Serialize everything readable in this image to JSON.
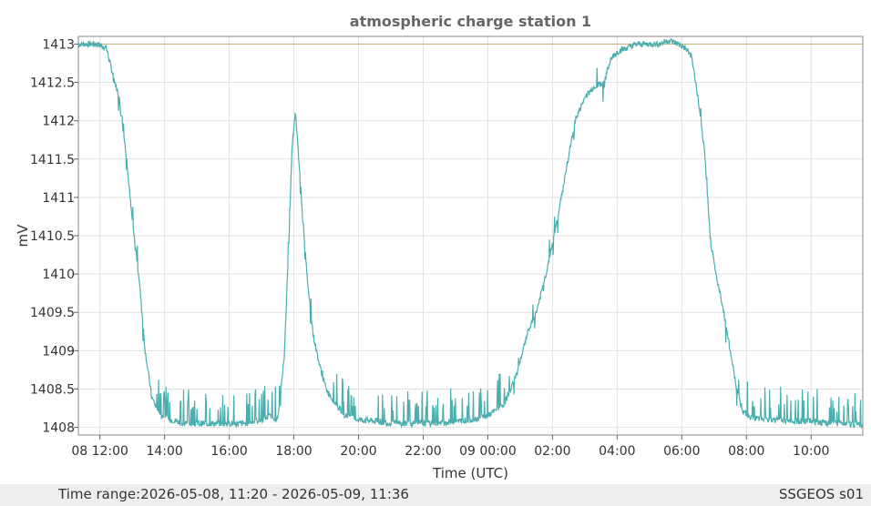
{
  "chart_data": {
    "type": "line",
    "title": "atmospheric charge station 1",
    "xlabel": "Time (UTC)",
    "ylabel": "mV",
    "x_tick_labels": [
      "08 12:00",
      "14:00",
      "16:00",
      "18:00",
      "20:00",
      "22:00",
      "09 00:00",
      "02:00",
      "04:00",
      "06:00",
      "08:00",
      "10:00"
    ],
    "x_tick_hours": [
      12,
      14,
      16,
      18,
      20,
      22,
      24,
      26,
      28,
      30,
      32,
      34
    ],
    "x_range_hours": [
      11.333,
      35.6
    ],
    "y_ticks": [
      1408,
      1408.5,
      1409,
      1409.5,
      1410,
      1410.5,
      1411,
      1411.5,
      1412,
      1412.5,
      1413
    ],
    "y_tick_labels": [
      "1408",
      "1408.5",
      "1409",
      "1409.5",
      "1410",
      "1410.5",
      "1411",
      "1411.5",
      "1412",
      "1412.5",
      "1413"
    ],
    "ylim": [
      1407.9,
      1413.1
    ],
    "grid": true,
    "reference_line": 1413,
    "series": [
      {
        "color": "#4aaeae",
        "x": [
          11.33,
          11.6,
          11.9,
          12.2,
          12.4,
          12.6,
          12.8,
          13.0,
          13.2,
          13.4,
          13.6,
          13.75,
          13.9,
          14.2,
          14.6,
          15.0,
          15.5,
          16.0,
          16.5,
          17.0,
          17.3,
          17.5,
          17.7,
          17.85,
          17.95,
          18.05,
          18.2,
          18.4,
          18.6,
          18.8,
          19.0,
          19.3,
          19.6,
          20.0,
          20.5,
          21.0,
          21.5,
          22.0,
          22.5,
          23.0,
          23.5,
          24.0,
          24.5,
          24.9,
          25.2,
          25.5,
          25.8,
          26.1,
          26.4,
          26.7,
          27.0,
          27.3,
          27.6,
          27.8,
          28.0,
          28.3,
          28.6,
          29.0,
          29.3,
          29.6,
          29.9,
          30.1,
          30.3,
          30.5,
          30.7,
          30.9,
          31.1,
          31.3,
          31.5,
          31.7,
          31.9,
          32.2,
          32.5,
          33.0,
          33.5,
          34.0,
          34.5,
          35.0,
          35.6
        ],
        "y": [
          1413.0,
          1413.0,
          1413.0,
          1412.95,
          1412.6,
          1412.3,
          1411.6,
          1410.7,
          1410.0,
          1409.0,
          1408.4,
          1408.25,
          1408.15,
          1408.1,
          1408.05,
          1408.05,
          1408.05,
          1408.05,
          1408.05,
          1408.1,
          1408.15,
          1408.1,
          1408.9,
          1410.5,
          1411.7,
          1412.1,
          1411.2,
          1410.0,
          1409.2,
          1408.8,
          1408.5,
          1408.3,
          1408.15,
          1408.1,
          1408.08,
          1408.05,
          1408.05,
          1408.05,
          1408.05,
          1408.08,
          1408.1,
          1408.15,
          1408.3,
          1408.7,
          1409.2,
          1409.5,
          1410.0,
          1410.6,
          1411.3,
          1412.0,
          1412.3,
          1412.45,
          1412.5,
          1412.8,
          1412.9,
          1412.95,
          1413.0,
          1413.0,
          1413.0,
          1413.05,
          1413.0,
          1412.95,
          1412.85,
          1412.3,
          1411.6,
          1410.4,
          1409.9,
          1409.5,
          1409.0,
          1408.5,
          1408.2,
          1408.12,
          1408.1,
          1408.1,
          1408.08,
          1408.08,
          1408.05,
          1408.05,
          1408.03
        ]
      }
    ]
  },
  "footer": {
    "time_range": "Time range:2026-05-08, 11:20 - 2026-05-09, 11:36",
    "station": "SSGEOS s01"
  }
}
